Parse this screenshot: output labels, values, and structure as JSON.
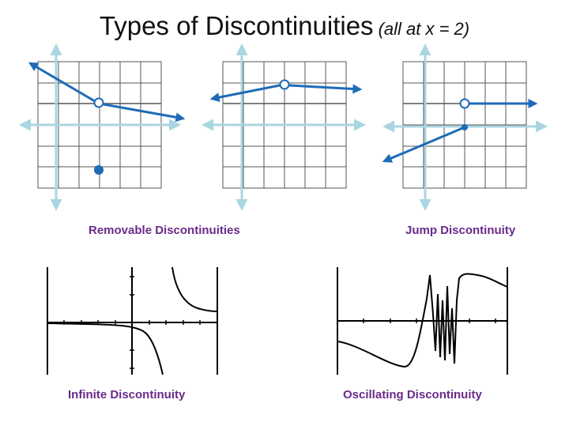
{
  "title": {
    "main": "Types of Discontinuities",
    "sub": "(all at x = 2)"
  },
  "captions": {
    "removable": "Removable Discontinuities",
    "jump": "Jump Discontinuity",
    "infinite": "Infinite Discontinuity",
    "oscillating": "Oscillating Discontinuity"
  },
  "colors": {
    "curve_blue": "#1e6bb8",
    "axis": "#a9d6e0",
    "grid": "#555555",
    "caption": "#6a2a8a",
    "calc_curve": "#000000"
  }
}
